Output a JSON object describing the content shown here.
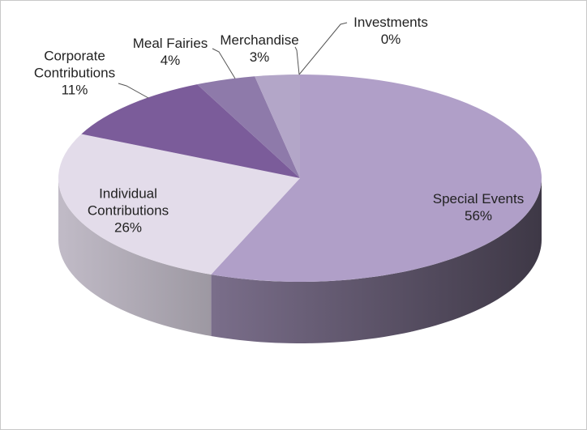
{
  "chart_data": {
    "type": "pie",
    "categories": [
      "Special Events",
      "Individual Contributions",
      "Corporate Contributions",
      "Meal Fairies",
      "Merchandise",
      "Investments"
    ],
    "values": [
      56,
      26,
      11,
      4,
      3,
      0
    ],
    "value_labels": [
      "56%",
      "26%",
      "11%",
      "4%",
      "3%",
      "0%"
    ],
    "colors": [
      "#b09fc8",
      "#e3dcea",
      "#7b5c9a",
      "#8e7aaa",
      "#b3a6c8",
      "#d6cce2"
    ]
  }
}
